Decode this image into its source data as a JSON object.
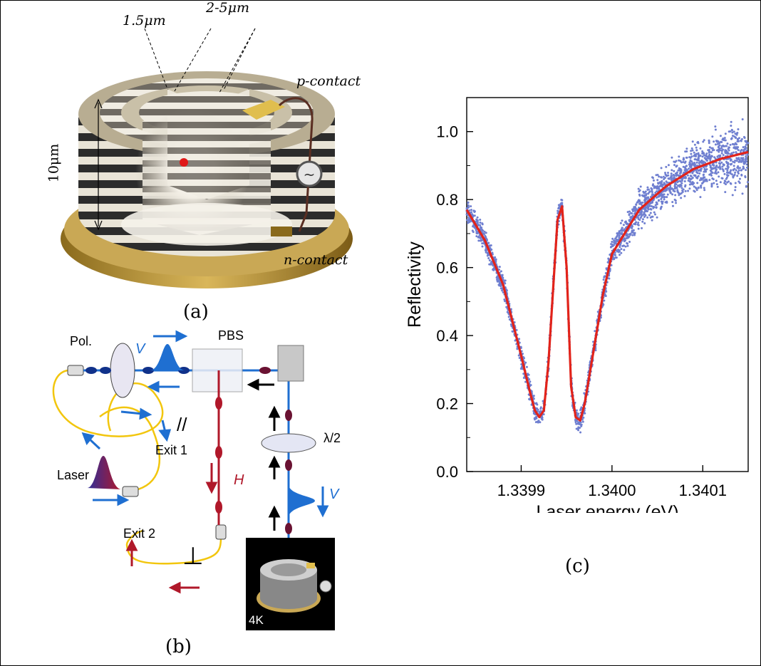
{
  "panel_a": {
    "caption": "(a)",
    "dim_pillar_width": "1.5μm",
    "dim_trench_width": "2-5μm",
    "dim_height": "10μm",
    "p_contact": "p-contact",
    "n_contact": "n-contact",
    "source_symbol": "~"
  },
  "panel_b": {
    "caption": "(b)",
    "pol_label": "Pol.",
    "pbs_label": "PBS",
    "v_label_top": "V",
    "v_label_right": "V",
    "h_label": "H",
    "half_wave_label": "λ/2",
    "exit1_label": "Exit 1",
    "exit2_label": "Exit 2",
    "laser_label": "Laser",
    "parallel_symbol": "//",
    "perp_symbol": "⊥",
    "temp_label": "4K",
    "colors": {
      "blue": "#1f6fd1",
      "red": "#b0182a",
      "fiber": "#f2c60e"
    }
  },
  "panel_c": {
    "caption": "(c)"
  },
  "chart_data": {
    "type": "scatter",
    "xlabel": "Laser energy (eV)",
    "ylabel": "Reflectivity",
    "xlim": [
      1.33984,
      1.34015
    ],
    "ylim": [
      0,
      1.1
    ],
    "xticks": [
      "1.3399",
      "1.3400",
      "1.3401"
    ],
    "xtick_values": [
      1.3399,
      1.34,
      1.3401
    ],
    "yticks": [
      "0.0",
      "0.2",
      "0.4",
      "0.6",
      "0.8",
      "1.0"
    ],
    "ytick_values": [
      0,
      0.2,
      0.4,
      0.6,
      0.8,
      1.0
    ],
    "series": [
      {
        "kind": "scatter",
        "color": "#6f7fd0",
        "x": [
          1.33984,
          1.33986,
          1.33988,
          1.3399,
          1.33991,
          1.339915,
          1.33992,
          1.339925,
          1.33993,
          1.33994,
          1.339945,
          1.33995,
          1.339955,
          1.33996,
          1.339965,
          1.33997,
          1.33998,
          1.33999,
          1.34,
          1.34003,
          1.34006,
          1.34009,
          1.34012,
          1.34015
        ],
        "y": [
          0.77,
          0.68,
          0.55,
          0.34,
          0.23,
          0.18,
          0.16,
          0.18,
          0.32,
          0.74,
          0.78,
          0.6,
          0.25,
          0.16,
          0.15,
          0.2,
          0.36,
          0.52,
          0.64,
          0.77,
          0.84,
          0.89,
          0.92,
          0.94
        ]
      },
      {
        "kind": "line",
        "color": "#e2231a",
        "x": [
          1.33984,
          1.33986,
          1.33988,
          1.3399,
          1.33991,
          1.339915,
          1.33992,
          1.339925,
          1.33993,
          1.33994,
          1.339945,
          1.33995,
          1.339955,
          1.33996,
          1.339965,
          1.33997,
          1.33998,
          1.33999,
          1.34,
          1.34003,
          1.34006,
          1.34009,
          1.34012,
          1.34015
        ],
        "y": [
          0.77,
          0.68,
          0.55,
          0.34,
          0.23,
          0.18,
          0.16,
          0.18,
          0.32,
          0.74,
          0.78,
          0.6,
          0.25,
          0.16,
          0.15,
          0.2,
          0.36,
          0.52,
          0.64,
          0.77,
          0.84,
          0.89,
          0.92,
          0.94
        ]
      }
    ]
  }
}
